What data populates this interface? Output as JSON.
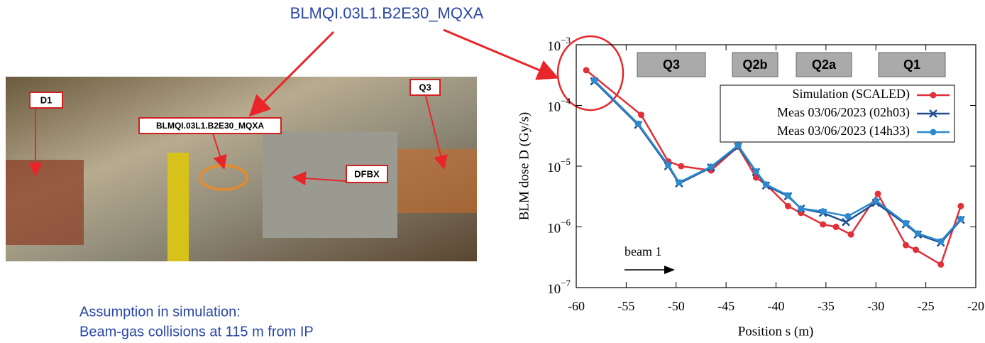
{
  "slide": {
    "header": "BLMQI.03L1.B2E30_MQXA",
    "photo_labels": [
      "D1",
      "BLMQI.03L1.B2E30_MQXA",
      "Q3",
      "DFBX"
    ],
    "notes": [
      "Assumption in simulation:",
      "Beam-gas collisions at 115 m from IP"
    ]
  },
  "chart_data": {
    "type": "line",
    "x_label": "Position s (m)",
    "y_label": "BLM dose D (Gy/s)",
    "annotations": [
      "Q3",
      "Q2b",
      "Q2a",
      "Q1",
      "beam 1"
    ],
    "xlim": [
      -60,
      -20
    ],
    "xticks": [
      -60,
      -55,
      -50,
      -45,
      -40,
      -35,
      -30,
      -25,
      -20
    ],
    "ylim": [
      1e-07,
      0.001
    ],
    "ylog": true,
    "yticks": [
      {
        "value": 1e-07,
        "label": "10−7"
      },
      {
        "value": 1e-06,
        "label": "10−6"
      },
      {
        "value": 1e-05,
        "label": "10−5"
      },
      {
        "value": 0.0001,
        "label": "10−4"
      },
      {
        "value": 0.001,
        "label": "10−3"
      }
    ],
    "legend": "top-right",
    "series": [
      {
        "name": "Simulation (SCALED)",
        "color": "#e0303a",
        "marker": "circle",
        "x": [
          -59,
          -53.5,
          -50.8,
          -49.5,
          -46.5,
          -43.8,
          -42,
          -41,
          -38.8,
          -37.5,
          -35.3,
          -34,
          -32.5,
          -29.8,
          -27,
          -26,
          -23.5,
          -21.5
        ],
        "values": [
          0.00038,
          7e-05,
          1.2e-05,
          1e-05,
          8.5e-06,
          2.1e-05,
          6.5e-06,
          5e-06,
          2.2e-06,
          1.7e-06,
          1.1e-06,
          1e-06,
          7.5e-07,
          3.5e-06,
          5e-07,
          4.2e-07,
          2.4e-07,
          2.2e-06
        ]
      },
      {
        "name": "Meas 03/06/2023 (02h03)",
        "color": "#1f4f8f",
        "marker": "x",
        "x": [
          -58.2,
          -53.8,
          -50.8,
          -49.7,
          -46.5,
          -43.8,
          -42,
          -41,
          -38.8,
          -37.5,
          -35.3,
          -33,
          -30,
          -27,
          -25.8,
          -23.5,
          -21.5
        ],
        "values": [
          0.00025,
          4.8e-05,
          1e-05,
          5.2e-06,
          9.5e-06,
          2.1e-05,
          8e-06,
          4.8e-06,
          3.2e-06,
          2e-06,
          1.7e-06,
          1.2e-06,
          2.5e-06,
          1.1e-06,
          7.5e-07,
          5.5e-07,
          1.3e-06
        ]
      },
      {
        "name": "Meas 03/06/2023 (14h33)",
        "color": "#2b8ad0",
        "marker": "circle",
        "x": [
          -58.2,
          -53.8,
          -50.8,
          -49.7,
          -46.5,
          -43.8,
          -42,
          -41,
          -38.8,
          -37.5,
          -35.3,
          -32.8,
          -30,
          -27,
          -25.8,
          -23.5,
          -21.5
        ],
        "values": [
          0.00026,
          5e-05,
          1.05e-05,
          5.4e-06,
          9.8e-06,
          2.2e-05,
          8.2e-06,
          5e-06,
          3.3e-06,
          2e-06,
          1.8e-06,
          1.5e-06,
          2.7e-06,
          1.15e-06,
          7.8e-07,
          5.8e-07,
          1.35e-06
        ]
      }
    ]
  }
}
